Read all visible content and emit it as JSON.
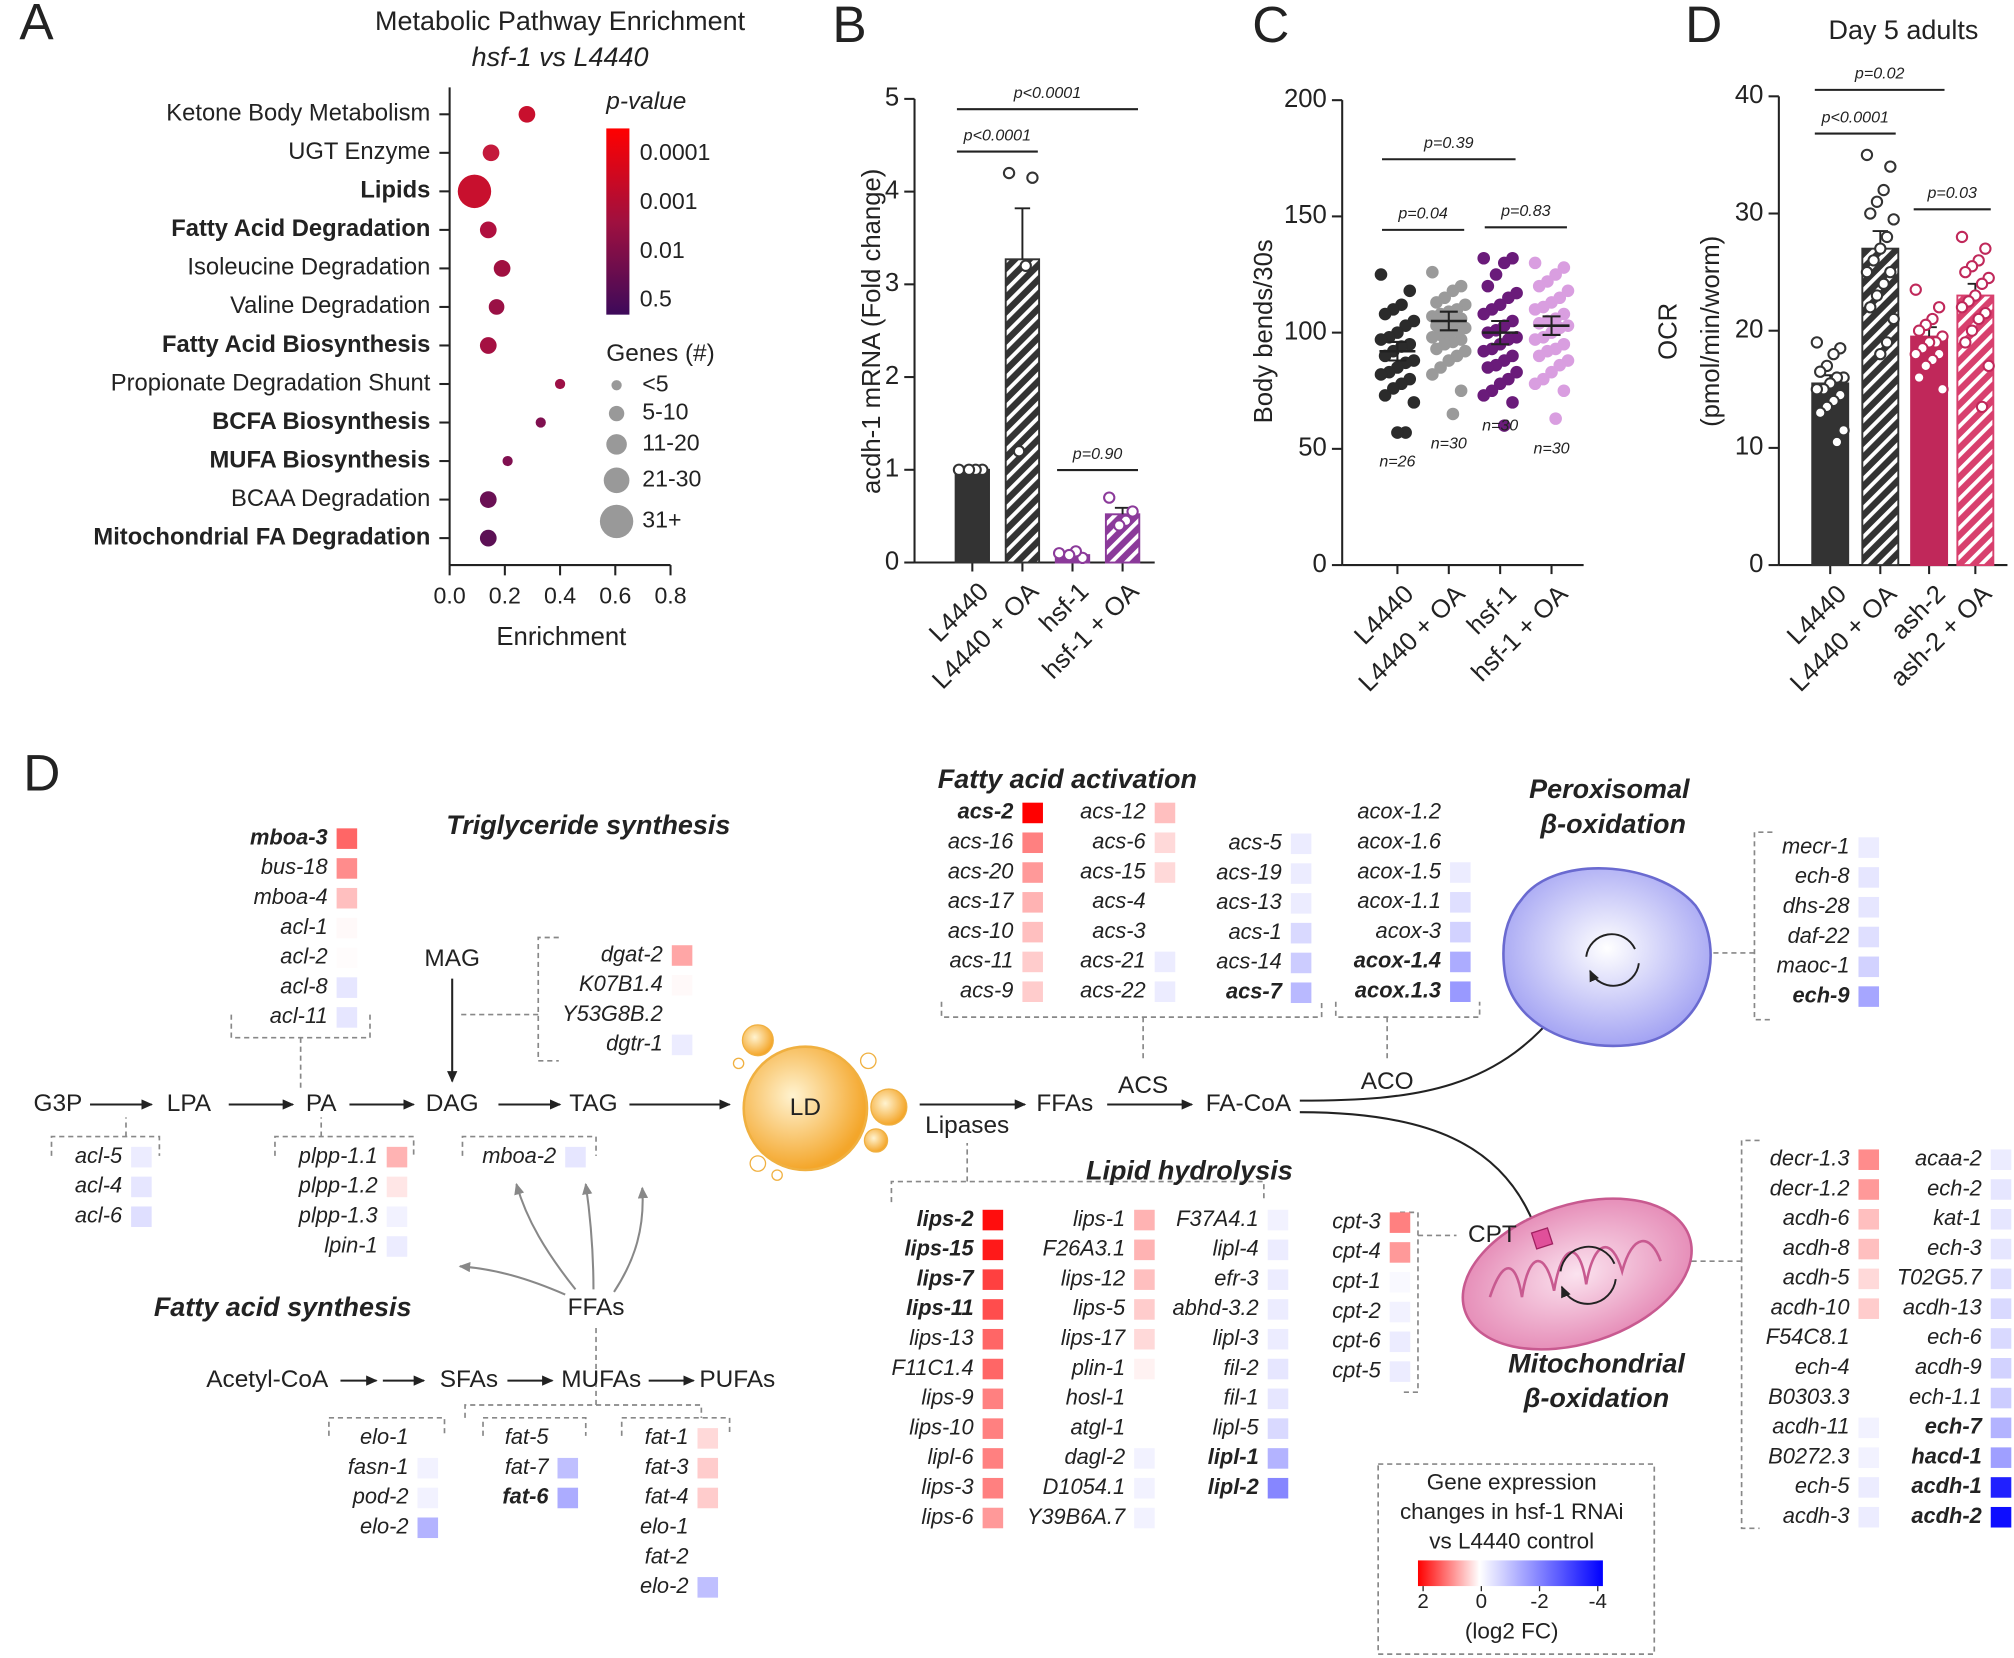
{
  "panel_labels": [
    "A",
    "B",
    "C",
    "D",
    "D"
  ],
  "chart_data": [
    {
      "type": "bubble",
      "title": "Metabolic Pathway Enrichment",
      "subtitle": "hsf-1 vs L4440",
      "categories": [
        "Ketone Body Metabolism",
        "UGT Enzyme",
        "Lipids",
        "Fatty Acid Degradation",
        "Isoleucine Degradation",
        "Valine Degradation",
        "Fatty Acid Biosynthesis",
        "Propionate Degradation Shunt",
        "BCFA Biosynthesis",
        "MUFA Biosynthesis",
        "BCAA Degradation",
        "Mitochondrial FA Degradation"
      ],
      "bold": [
        false,
        false,
        true,
        true,
        false,
        false,
        true,
        false,
        true,
        true,
        false,
        true
      ],
      "values": [
        0.28,
        0.15,
        0.09,
        0.14,
        0.19,
        0.17,
        0.14,
        0.4,
        0.33,
        0.21,
        0.14,
        0.14
      ],
      "genes": [
        8,
        8,
        32,
        8,
        8,
        7,
        8,
        3,
        3,
        3,
        8,
        8
      ],
      "colors": [
        "#c8102e",
        "#c41a3c",
        "#c8102e",
        "#b0103f",
        "#a01040",
        "#9a1045",
        "#a51042",
        "#9d1046",
        "#801050",
        "#801050",
        "#6a1054",
        "#5c1055"
      ],
      "xlim": [
        0,
        0.8
      ],
      "xticks": [
        {
          "value": 0,
          "label": "0.0"
        },
        0.2,
        0.4,
        0.6,
        0.8
      ],
      "xlabel": "Enrichment",
      "color_legend": {
        "title": "p-value",
        "labels": [
          "0.0001",
          "0.001",
          "0.01",
          "0.5"
        ]
      },
      "size_legend": {
        "title": "Genes (#)",
        "labels": [
          "<5",
          "5-10",
          "11-20",
          "21-30",
          "31+"
        ]
      }
    },
    {
      "type": "bar",
      "categories": [
        "L4440",
        "L4440 + OA",
        "hsf-1",
        "hsf-1 + OA"
      ],
      "values": [
        1.0,
        3.27,
        0.08,
        0.52
      ],
      "errors": [
        0.02,
        0.55,
        0.02,
        0.07
      ],
      "colors": [
        "#333333",
        "#333333",
        "#8b3a9a",
        "#8b3a9a"
      ],
      "hatch": [
        false,
        true,
        false,
        true
      ],
      "point_colors": [
        "#333333",
        "#333333",
        "#8b3a9a",
        "#8b3a9a"
      ],
      "points": [
        [
          1,
          1,
          1,
          1
        ],
        [
          4.2,
          4.15,
          3.2,
          1.2
        ],
        [
          0.1,
          0.05,
          0.12,
          0.08
        ],
        [
          0.7,
          0.55,
          0.45,
          0.4
        ]
      ],
      "ylim": [
        0,
        5
      ],
      "yticks": [
        0,
        1,
        2,
        3,
        4,
        5
      ],
      "ylabel": "acdh-1 mRNA (Fold change)",
      "annotations": [
        {
          "label": "p<0.0001",
          "between": [
            0,
            3
          ]
        },
        {
          "label": "p<0.0001",
          "between": [
            0,
            1
          ]
        },
        {
          "label": "p=0.90",
          "between": [
            2,
            3
          ]
        }
      ]
    },
    {
      "type": "strip",
      "categories": [
        "L4440",
        "L4440 + OA",
        "hsf-1",
        "hsf-1 + OA"
      ],
      "values": [
        92,
        105,
        100,
        103
      ],
      "errors": [
        4,
        4,
        5,
        4
      ],
      "point_colors": [
        "#2b2b2b",
        "#9a9a9a",
        "#6a1b7a",
        "#d99ee0"
      ],
      "points": [
        [
          125,
          118,
          112,
          110,
          108,
          105,
          103,
          100,
          98,
          97,
          95,
          94,
          92,
          90,
          88,
          87,
          85,
          83,
          82,
          80,
          78,
          76,
          73,
          70,
          57,
          57
        ],
        [
          126,
          120,
          118,
          115,
          113,
          112,
          110,
          109,
          108,
          107,
          106,
          105,
          104,
          103,
          102,
          101,
          100,
          99,
          98,
          97,
          96,
          95,
          93,
          92,
          90,
          88,
          85,
          82,
          75,
          65
        ],
        [
          132,
          132,
          130,
          125,
          120,
          117,
          115,
          112,
          110,
          108,
          105,
          103,
          101,
          100,
          98,
          97,
          95,
          93,
          92,
          90,
          88,
          86,
          85,
          83,
          80,
          78,
          75,
          73,
          70,
          60
        ],
        [
          130,
          128,
          125,
          122,
          120,
          118,
          115,
          113,
          111,
          110,
          108,
          106,
          105,
          104,
          103,
          102,
          100,
          98,
          97,
          95,
          93,
          92,
          90,
          88,
          86,
          83,
          80,
          78,
          75,
          63
        ]
      ],
      "n_labels": [
        "n=26",
        "n=30",
        "n=30",
        "n=30"
      ],
      "ylim": [
        0,
        200
      ],
      "yticks": [
        0,
        50,
        100,
        150,
        200
      ],
      "ylabel": "Body bends/30s",
      "annotations": [
        {
          "label": "p=0.39",
          "between": [
            0,
            2
          ]
        },
        {
          "label": "p=0.04",
          "between": [
            0,
            1
          ]
        },
        {
          "label": "p=0.83",
          "between": [
            2,
            3
          ]
        }
      ]
    },
    {
      "type": "bar",
      "title": "Day 5 adults",
      "categories": [
        "L4440",
        "L4440 + OA",
        "ash-2",
        "ash-2 + OA"
      ],
      "values": [
        15.5,
        27,
        19.5,
        23
      ],
      "errors": [
        0.7,
        1.5,
        0.8,
        1
      ],
      "colors": [
        "#333333",
        "#333333",
        "#c0285a",
        "#d8406e"
      ],
      "hatch": [
        false,
        true,
        false,
        true
      ],
      "point_colors": [
        "#333333",
        "#333333",
        "#c0285a",
        "#c0285a"
      ],
      "points": [
        [
          19,
          18.5,
          18,
          17,
          16.5,
          16,
          16,
          15.5,
          15,
          15,
          14.5,
          14,
          13.5,
          13,
          11.5,
          10.5
        ],
        [
          35,
          34,
          32,
          31,
          30,
          29.5,
          28,
          27,
          26,
          25,
          25,
          24,
          23,
          22,
          21,
          19,
          18
        ],
        [
          23.5,
          22,
          21,
          20.5,
          20,
          19.5,
          19,
          19,
          18.5,
          18,
          18,
          17.5,
          17,
          16,
          15
        ],
        [
          28,
          27,
          26,
          25.5,
          25,
          24.5,
          24,
          23,
          22.5,
          22,
          21.5,
          21,
          20,
          19,
          17,
          13.5
        ]
      ],
      "ylim": [
        0,
        40
      ],
      "yticks": [
        0,
        10,
        20,
        30,
        40
      ],
      "ylabel": [
        "OCR",
        "(pmol/min/worm)"
      ],
      "annotations": [
        {
          "label": "p=0.02",
          "between": [
            0,
            2
          ]
        },
        {
          "label": "p<0.0001",
          "between": [
            0,
            1
          ]
        },
        {
          "label": "p=0.03",
          "between": [
            2,
            3
          ]
        }
      ]
    }
  ],
  "diagram": {
    "headings": [
      "Triglyceride synthesis",
      "Fatty acid synthesis",
      "Fatty acid activation",
      "Lipid hydrolysis",
      "Peroxisomal",
      "β-oxidation",
      "Mitochondrial",
      "β-oxidation"
    ],
    "nodes": [
      "G3P",
      "LPA",
      "PA",
      "DAG",
      "TAG",
      "MAG",
      "LD",
      "Lipases",
      "FFAs",
      "ACS",
      "FA-CoA",
      "ACO",
      "CPT",
      "FFAs",
      "Acetyl-CoA",
      "SFAs",
      "MUFAs",
      "PUFAs"
    ],
    "groups": [
      {
        "genes": [
          "mboa-3",
          "bus-18",
          "mboa-4",
          "acl-1",
          "acl-2",
          "acl-8",
          "acl-11"
        ],
        "log2fc": [
          1.2,
          0.9,
          0.5,
          0.05,
          0.02,
          -0.4,
          -0.4
        ],
        "bold": [
          true,
          false,
          false,
          false,
          false,
          false,
          false
        ]
      },
      {
        "genes": [
          "acl-5",
          "acl-4",
          "acl-6"
        ],
        "log2fc": [
          -0.3,
          -0.4,
          -0.5
        ],
        "bold": [
          false,
          false,
          false
        ]
      },
      {
        "genes": [
          "plpp-1.1",
          "plpp-1.2",
          "plpp-1.3",
          "lpin-1"
        ],
        "log2fc": [
          0.6,
          0.2,
          -0.2,
          -0.3
        ],
        "bold": [
          false,
          false,
          false,
          false
        ]
      },
      {
        "genes": [
          "mboa-2"
        ],
        "log2fc": [
          -0.4
        ],
        "bold": [
          false
        ]
      },
      {
        "genes": [
          "dgat-2",
          "K07B1.4",
          "Y53G8B.2",
          "dgtr-1"
        ],
        "log2fc": [
          0.7,
          0.05,
          0,
          -0.3
        ],
        "bold": [
          false,
          false,
          false,
          false
        ]
      },
      {
        "genes": [
          "elo-1",
          "fasn-1",
          "pod-2",
          "elo-2"
        ],
        "log2fc": [
          0,
          -0.2,
          -0.2,
          -1.2
        ],
        "bold": [
          false,
          false,
          false,
          false
        ]
      },
      {
        "genes": [
          "fat-5",
          "fat-7",
          "fat-6"
        ],
        "log2fc": [
          0,
          -1.0,
          -1.3
        ],
        "bold": [
          false,
          false,
          true
        ]
      },
      {
        "genes": [
          "fat-1",
          "fat-3",
          "fat-4",
          "elo-1",
          "fat-2",
          "elo-2"
        ],
        "log2fc": [
          0.3,
          0.4,
          0.4,
          0,
          0,
          -1.0
        ],
        "bold": [
          false,
          false,
          false,
          false,
          false,
          false
        ]
      },
      {
        "genes": [
          "acs-2",
          "acs-16",
          "acs-20",
          "acs-17",
          "acs-10",
          "acs-11",
          "acs-9"
        ],
        "log2fc": [
          2,
          1.0,
          0.8,
          0.6,
          0.5,
          0.4,
          0.4
        ],
        "bold": [
          true,
          false,
          false,
          false,
          false,
          false,
          false
        ]
      },
      {
        "genes": [
          "acs-12",
          "acs-6",
          "acs-15",
          "acs-4",
          "acs-3",
          "acs-21",
          "acs-22"
        ],
        "log2fc": [
          0.5,
          0.3,
          0.3,
          0,
          0,
          -0.3,
          -0.3
        ],
        "bold": [
          false,
          false,
          false,
          false,
          false,
          false,
          false
        ]
      },
      {
        "genes": [
          "acs-5",
          "acs-19",
          "acs-13",
          "acs-1",
          "acs-14",
          "acs-7"
        ],
        "log2fc": [
          -0.3,
          -0.3,
          -0.3,
          -0.6,
          -0.8,
          -1.1
        ],
        "bold": [
          false,
          false,
          false,
          false,
          false,
          true
        ]
      },
      {
        "genes": [
          "acox-1.2",
          "acox-1.6",
          "acox-1.5",
          "acox-1.1",
          "acox-3",
          "acox-1.4",
          "acox.1.3"
        ],
        "log2fc": [
          0,
          0,
          -0.3,
          -0.5,
          -0.7,
          -1.3,
          -1.6
        ],
        "bold": [
          false,
          false,
          false,
          false,
          false,
          true,
          true
        ]
      },
      {
        "genes": [
          "mecr-1",
          "ech-8",
          "dhs-28",
          "daf-22",
          "maoc-1",
          "ech-9"
        ],
        "log2fc": [
          -0.3,
          -0.4,
          -0.4,
          -0.5,
          -0.7,
          -1.4
        ],
        "bold": [
          false,
          false,
          false,
          false,
          false,
          true
        ]
      },
      {
        "genes": [
          "lips-2",
          "lips-15",
          "lips-7",
          "lips-11",
          "lips-13",
          "F11C1.4",
          "lips-9",
          "lips-10",
          "lipl-6",
          "lips-3",
          "lips-6"
        ],
        "log2fc": [
          1.9,
          1.8,
          1.5,
          1.4,
          1.2,
          1.2,
          1.0,
          1.0,
          1.0,
          1.0,
          0.8
        ],
        "bold": [
          true,
          true,
          true,
          true,
          false,
          false,
          false,
          false,
          false,
          false,
          false
        ]
      },
      {
        "genes": [
          "lips-1",
          "F26A3.1",
          "lips-12",
          "lips-5",
          "lips-17",
          "plin-1",
          "hosl-1",
          "atgl-1",
          "dagl-2",
          "D1054.1",
          "Y39B6A.7"
        ],
        "log2fc": [
          0.6,
          0.6,
          0.5,
          0.4,
          0.3,
          0.1,
          0,
          0,
          -0.2,
          -0.2,
          -0.2
        ],
        "bold": [
          false,
          false,
          false,
          false,
          false,
          false,
          false,
          false,
          false,
          false,
          false
        ]
      },
      {
        "genes": [
          "F37A4.1",
          "lipl-4",
          "efr-3",
          "abhd-3.2",
          "lipl-3",
          "fil-2",
          "fil-1",
          "lipl-5",
          "lipl-1",
          "lipl-2"
        ],
        "log2fc": [
          -0.2,
          -0.3,
          -0.3,
          -0.3,
          -0.3,
          -0.4,
          -0.4,
          -0.6,
          -1.2,
          -1.9
        ],
        "bold": [
          false,
          false,
          false,
          false,
          false,
          false,
          false,
          false,
          true,
          true
        ]
      },
      {
        "genes": [
          "cpt-3",
          "cpt-4",
          "cpt-1",
          "cpt-2",
          "cpt-6",
          "cpt-5"
        ],
        "log2fc": [
          1.0,
          0.8,
          -0.1,
          -0.2,
          -0.3,
          -0.3
        ],
        "bold": [
          false,
          false,
          false,
          false,
          false,
          false
        ]
      },
      {
        "genes": [
          "decr-1.3",
          "decr-1.2",
          "acdh-6",
          "acdh-8",
          "acdh-5",
          "acdh-10",
          "F54C8.1",
          "ech-4",
          "B0303.3",
          "acdh-11",
          "B0272.3",
          "ech-5",
          "acdh-3"
        ],
        "log2fc": [
          0.9,
          0.8,
          0.5,
          0.5,
          0.3,
          0.4,
          0,
          0,
          0,
          -0.2,
          -0.2,
          -0.3,
          -0.3
        ],
        "bold": [
          false,
          false,
          false,
          false,
          false,
          false,
          false,
          false,
          false,
          false,
          false,
          false,
          false
        ]
      },
      {
        "genes": [
          "acaa-2",
          "ech-2",
          "kat-1",
          "ech-3",
          "T02G5.7",
          "acdh-13",
          "ech-6",
          "acdh-9",
          "ech-1.1",
          "ech-7",
          "hacd-1",
          "acdh-1",
          "acdh-2"
        ],
        "log2fc": [
          -0.3,
          -0.4,
          -0.4,
          -0.4,
          -0.5,
          -0.6,
          -0.6,
          -0.7,
          -0.8,
          -1.2,
          -1.5,
          -3.5,
          -3.8
        ],
        "bold": [
          false,
          false,
          false,
          false,
          false,
          false,
          false,
          false,
          false,
          true,
          true,
          true,
          true
        ]
      }
    ],
    "legend": {
      "title": [
        "Gene expression",
        "changes in hsf-1 RNAi",
        "vs L4440 control"
      ],
      "ticks": [
        2,
        0,
        -2,
        -4
      ],
      "clim": [
        2,
        -4
      ],
      "unit": "(log2 FC)"
    }
  }
}
